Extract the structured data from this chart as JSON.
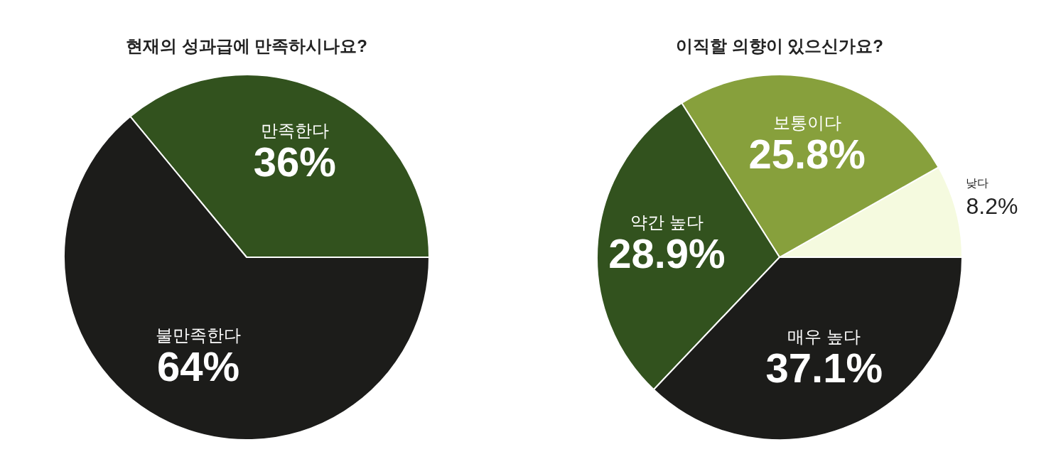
{
  "chart_data": [
    {
      "type": "pie",
      "title": "현재의 성과급에 만족하시나요?",
      "categories": [
        "만족한다",
        "불만족한다"
      ],
      "values": [
        36,
        64
      ],
      "colors": [
        "#32521e",
        "#1c1c1a"
      ],
      "value_labels": [
        "36%",
        "64%"
      ]
    },
    {
      "type": "pie",
      "title": "이직할 의향이 있으신가요?",
      "categories": [
        "낮다",
        "보통이다",
        "약간 높다",
        "매우 높다"
      ],
      "values": [
        8.2,
        25.8,
        28.9,
        37.1
      ],
      "colors": [
        "#f5fadf",
        "#87a03c",
        "#32521e",
        "#1c1c1a"
      ],
      "value_labels": [
        "8.2%",
        "25.8%",
        "28.9%",
        "37.1%"
      ]
    }
  ]
}
